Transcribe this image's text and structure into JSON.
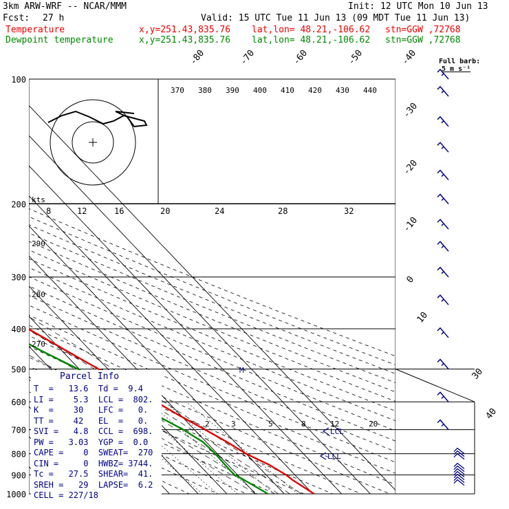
{
  "header": {
    "model": "3km ARW-WRF -- NCAR/MMM",
    "init": "Init: 12 UTC Mon 10 Jun 13",
    "fcst_label": "Fcst:",
    "fcst_value": "27 h",
    "valid": "Valid: 15 UTC Tue 11 Jun 13 (09 MDT Tue 11 Jun 13)",
    "temp_label": "Temperature",
    "dew_label": "Dewpoint temperature",
    "xy": "x,y=251.43,835.76",
    "latlon": "lat,lon= 48.21,-106.62",
    "stn": "stn=GGW ,72768"
  },
  "colors": {
    "temperature": "#e00000",
    "dewpoint": "#008800",
    "wind": "#000080",
    "grid": "#000000"
  },
  "barb_key": {
    "line1": "Full barb:",
    "line2": "5 m s⁻¹"
  },
  "hodograph": {
    "units": "kts"
  },
  "chart_data": {
    "type": "line",
    "title": "",
    "y_axis": {
      "label": "",
      "scale": "log",
      "range": [
        1000,
        100
      ],
      "ticks": [
        100,
        200,
        300,
        400,
        500,
        600,
        700,
        800,
        900,
        1000
      ]
    },
    "isotherm_labels": [
      -80,
      -70,
      -60,
      -50,
      -40,
      -30,
      -20,
      -10,
      0,
      10,
      30,
      40
    ],
    "theta_labels": [
      370,
      380,
      390,
      400,
      410,
      420,
      430,
      440,
      290,
      280,
      270
    ],
    "hodo_speed_labels": [
      8,
      12,
      16,
      20,
      24,
      28,
      32
    ],
    "mixing_ratio_labels": [
      2,
      3,
      5,
      8,
      12,
      20
    ],
    "series": [
      {
        "name": "Temperature",
        "points": [
          [
            1000,
            30.4
          ],
          [
            925,
            27.5
          ],
          [
            900,
            26.9
          ],
          [
            850,
            24.3
          ],
          [
            800,
            20.0
          ],
          [
            750,
            17.3
          ],
          [
            700,
            13.7
          ],
          [
            650,
            9.7
          ],
          [
            600,
            5.8
          ],
          [
            550,
            1.3
          ],
          [
            500,
            -3.3
          ],
          [
            450,
            -8.6
          ],
          [
            400,
            -14.5
          ],
          [
            350,
            -21.0
          ],
          [
            300,
            -28.5
          ],
          [
            275,
            -32.8
          ],
          [
            250,
            -36.8
          ],
          [
            225,
            -39.5
          ],
          [
            200,
            -42.5
          ],
          [
            175,
            -46.0
          ],
          [
            150,
            -50.5
          ],
          [
            130,
            -53.0
          ],
          [
            115,
            -53.5
          ],
          [
            100,
            -52.5
          ]
        ]
      },
      {
        "name": "Dewpoint temperature",
        "points": [
          [
            1000,
            14.3
          ],
          [
            925,
            10.6
          ],
          [
            900,
            8.9
          ],
          [
            850,
            9.0
          ],
          [
            800,
            9.3
          ],
          [
            750,
            8.9
          ],
          [
            700,
            6.1
          ],
          [
            650,
            1.8
          ],
          [
            600,
            -2.3
          ],
          [
            550,
            -7.2
          ],
          [
            500,
            -10.4
          ],
          [
            450,
            -17.4
          ],
          [
            400,
            -24.0
          ],
          [
            350,
            -32.0
          ],
          [
            300,
            -39.3
          ],
          [
            250,
            -48.9
          ],
          [
            235,
            -49.5
          ],
          [
            215,
            -52.5
          ],
          [
            200,
            -60.0
          ],
          [
            180,
            -68.0
          ],
          [
            160,
            -67.5
          ],
          [
            140,
            -67.5
          ],
          [
            120,
            -69.0
          ],
          [
            100,
            -68.5
          ]
        ]
      }
    ],
    "winds": [
      {
        "p": 870,
        "count": 7
      },
      {
        "p": 800,
        "count": 3
      },
      {
        "p": 700,
        "label": ""
      },
      {
        "p": 600,
        "label": ""
      },
      {
        "p": 500,
        "label": ""
      },
      {
        "p": 420,
        "label": ""
      },
      {
        "p": 350,
        "label": ""
      },
      {
        "p": 300,
        "label": ""
      },
      {
        "p": 260,
        "label": ""
      },
      {
        "p": 230,
        "label": ""
      },
      {
        "p": 200,
        "label": ""
      },
      {
        "p": 175,
        "label": ""
      },
      {
        "p": 150,
        "label": ""
      },
      {
        "p": 130,
        "label": ""
      },
      {
        "p": 110,
        "label": ""
      },
      {
        "p": 100,
        "label": ""
      }
    ],
    "parcel_labels": {
      "lcl": "LCL",
      "mark": "M"
    }
  },
  "parcel_info": {
    "title": "Parcel Info",
    "rows": [
      "T  =   13.6  Td =  9.4",
      "LI =    5.3  LCL =  802.",
      "K  =    30   LFC =   0.",
      "TT =    42   EL  =   0.",
      "SVI =   4.8  CCL =  698.",
      "PW =   3.03  YGP =  0.0",
      "CAPE =    0  SWEAT=  270",
      "CIN =     0  HWBZ= 3744.",
      "Tc =   27.5  SHEAR=  41.",
      "SREH =   29  LAPSE=  6.2",
      "CELL = 227/18"
    ]
  }
}
